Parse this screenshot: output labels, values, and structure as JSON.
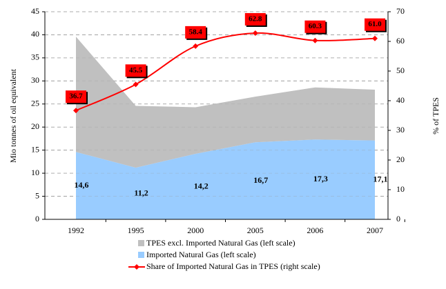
{
  "chart_data": {
    "type": "area-line",
    "y_label": "Mio tonnes of oil equivalent",
    "y2_label": "% of TPES",
    "categories": [
      "1992",
      "1995",
      "2000",
      "2005",
      "2006",
      "2007"
    ],
    "series": [
      {
        "name": "TPES excl. Imported Natural Gas (left scale)",
        "type": "area",
        "color": "#c0c0c0",
        "values": [
          25.0,
          13.4,
          10.1,
          9.9,
          11.3,
          11.0
        ]
      },
      {
        "name": "Imported Natural Gas (left scale)",
        "type": "area",
        "color": "#99ccff",
        "values": [
          14.6,
          11.2,
          14.2,
          16.7,
          17.3,
          17.1
        ],
        "value_labels": [
          "14,6",
          "11,2",
          "14,2",
          "16,7",
          "17,3",
          "17,1"
        ]
      },
      {
        "name": "Share of Imported Natural Gas in TPES (right scale)",
        "type": "line",
        "axis": "y2",
        "color": "#ff0000",
        "values": [
          36.7,
          45.5,
          58.4,
          62.8,
          60.3,
          61.0
        ],
        "value_labels": [
          "36.7",
          "45.5",
          "58.4",
          "62.8",
          "60.3",
          "61.0"
        ]
      }
    ],
    "ylim": [
      0,
      45
    ],
    "yticks": [
      0,
      5,
      10,
      15,
      20,
      25,
      30,
      35,
      40,
      45
    ],
    "y2lim": [
      0,
      70
    ],
    "y2ticks": [
      0,
      10,
      20,
      30,
      40,
      50,
      60,
      70
    ],
    "grid": true
  }
}
